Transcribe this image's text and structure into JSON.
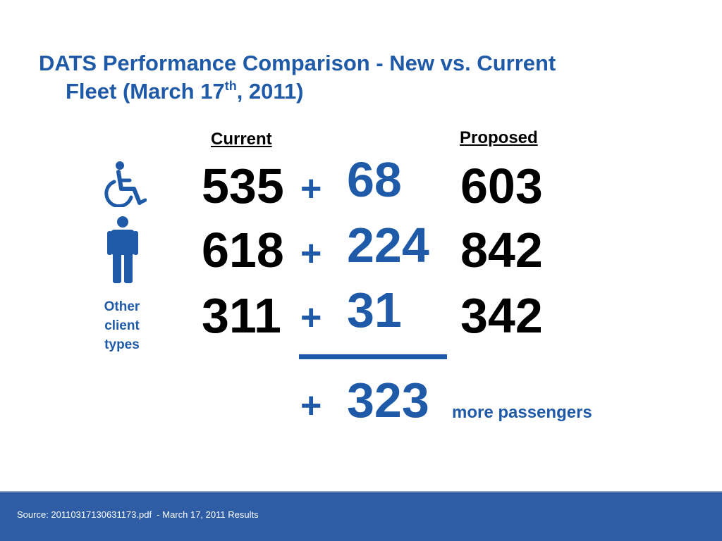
{
  "title": {
    "line1": "DATS Performance Comparison - New vs. Current",
    "line2_pre": "Fleet (March 17",
    "line2_sup": "th",
    "line2_post": ", 2011)"
  },
  "columns": {
    "current": "Current",
    "proposed": "Proposed"
  },
  "colors": {
    "accent": "#1f5aa8",
    "footer": "#2e5da6"
  },
  "rows": [
    {
      "icon": "wheelchair-icon",
      "current": "535",
      "plus": "+",
      "added": "68",
      "proposed": "603"
    },
    {
      "icon": "person-icon",
      "current": "618",
      "plus": "+",
      "added": "224",
      "proposed": "842"
    },
    {
      "label": "Other client types",
      "current": "311",
      "plus": "+",
      "added": "31",
      "proposed": "342"
    }
  ],
  "total": {
    "plus": "+",
    "value": "323",
    "text": "more passengers"
  },
  "footer": {
    "source": "Source: 20110317130631173.pdf  - March 17, 2011 Results"
  }
}
